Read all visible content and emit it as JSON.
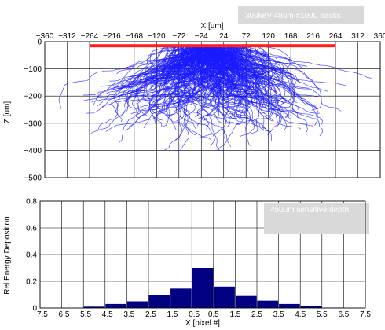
{
  "chart_data": [
    {
      "type": "scatter",
      "title": "",
      "xlabel": "X [um]",
      "ylabel": "Z [um]",
      "xlim": [
        -360,
        360
      ],
      "ylim": [
        -500,
        0
      ],
      "x_ticks": [
        "−360",
        "−312",
        "−264",
        "−216",
        "−168",
        "−120",
        "−72",
        "−24",
        "24",
        "72",
        "120",
        "168",
        "216",
        "264",
        "312",
        "360"
      ],
      "y_ticks": [
        "0",
        "−100",
        "−200",
        "−300",
        "−400",
        "−500"
      ],
      "grid": true,
      "annotation": "300keV 48um #1000 tracks",
      "sensor_bar": {
        "x_start": -264,
        "x_end": 264,
        "depth": -15
      },
      "track_count": 1000,
      "colors": {
        "tracks": "#1a1aff",
        "sensor": "#ff2020",
        "annotation_box": "#d9d9d9"
      }
    },
    {
      "type": "bar",
      "title": "",
      "xlabel": "X [pixel #]",
      "ylabel": "Rel Energy Deposition",
      "xlim": [
        -7.5,
        7.5
      ],
      "ylim": [
        0,
        0.8
      ],
      "categories": [
        -7,
        -6,
        -5,
        -4,
        -3,
        -2,
        -1,
        0,
        1,
        2,
        3,
        4,
        5,
        6,
        7
      ],
      "values": [
        0,
        0,
        0.01,
        0.03,
        0.05,
        0.095,
        0.145,
        0.3,
        0.16,
        0.09,
        0.055,
        0.03,
        0.012,
        0.003,
        0
      ],
      "x_ticks": [
        "−7.5",
        "−6.5",
        "−5.5",
        "−4.5",
        "−3.5",
        "−2.5",
        "−1.5",
        "−0.5",
        "0.5",
        "1.5",
        "2.5",
        "3.5",
        "4.5",
        "5.5",
        "6.5",
        "7.5"
      ],
      "y_ticks": [
        "0",
        "0.2",
        "0.4",
        "0.6",
        "0.8"
      ],
      "grid": true,
      "annotation": "450um sensitive depth",
      "colors": {
        "bars": "#000080",
        "annotation_box": "#d9d9d9"
      }
    }
  ]
}
